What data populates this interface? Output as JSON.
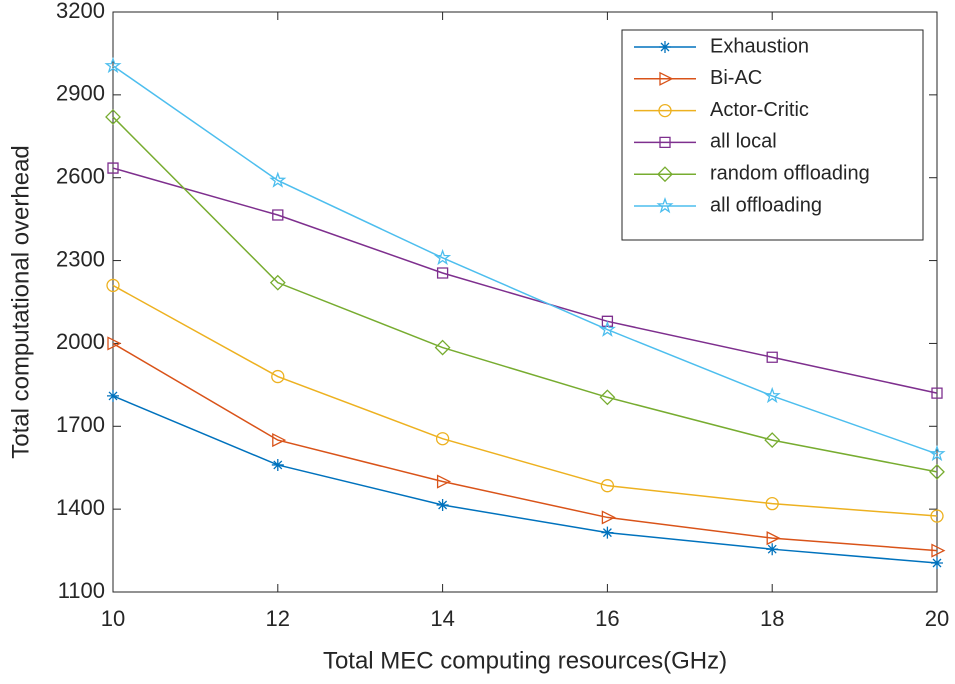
{
  "chart_data": {
    "type": "line",
    "x_label": "Total MEC computing resources(GHz)",
    "y_label": "Total computational overhead",
    "x": [
      10,
      12,
      14,
      16,
      18,
      20
    ],
    "xlim": [
      10,
      20
    ],
    "xticks": [
      10,
      12,
      14,
      16,
      18,
      20
    ],
    "ylim": [
      1100,
      3200
    ],
    "yticks": [
      1100,
      1400,
      1700,
      2000,
      2300,
      2600,
      2900,
      3200
    ],
    "grid": false,
    "legend_position": "top-right",
    "series": [
      {
        "name": "Exhaustion",
        "color": "#0072BD",
        "marker": "asterisk",
        "values": [
          1810,
          1560,
          1415,
          1315,
          1255,
          1205
        ]
      },
      {
        "name": "Bi-AC",
        "color": "#D95319",
        "marker": "triangle-right",
        "values": [
          2000,
          1650,
          1500,
          1370,
          1295,
          1250
        ]
      },
      {
        "name": "Actor-Critic",
        "color": "#EDB120",
        "marker": "circle",
        "values": [
          2210,
          1880,
          1655,
          1485,
          1420,
          1375
        ]
      },
      {
        "name": "all local",
        "color": "#7E2F8E",
        "marker": "square",
        "values": [
          2635,
          2465,
          2255,
          2080,
          1950,
          1820
        ]
      },
      {
        "name": "random offloading",
        "color": "#77AC30",
        "marker": "diamond",
        "values": [
          2820,
          2220,
          1985,
          1805,
          1650,
          1535
        ]
      },
      {
        "name": "all offloading",
        "color": "#4DBEEE",
        "marker": "pentagram",
        "values": [
          3005,
          2590,
          2310,
          2050,
          1810,
          1600
        ]
      }
    ]
  }
}
